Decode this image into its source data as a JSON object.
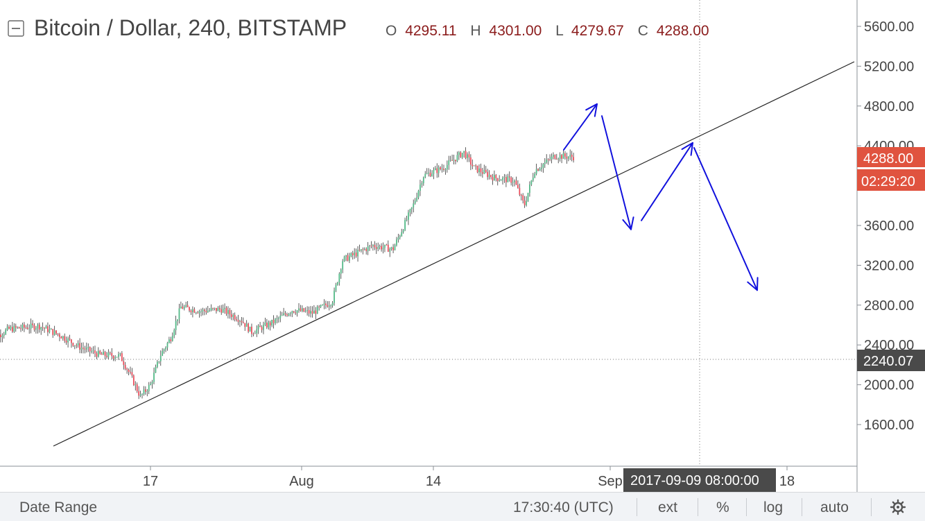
{
  "header": {
    "symbol_title": "Bitcoin / Dollar, 240, BITSTAMP",
    "ohlc": [
      {
        "key": "O",
        "value": "4295.11"
      },
      {
        "key": "H",
        "value": "4301.00"
      },
      {
        "key": "L",
        "value": "4279.67"
      },
      {
        "key": "C",
        "value": "4288.00"
      }
    ]
  },
  "price_axis": {
    "ticks": [
      "5600.00",
      "5200.00",
      "4800.00",
      "4400.00",
      "3600.00",
      "3200.00",
      "2800.00",
      "2400.00",
      "2000.00",
      "1600.00"
    ],
    "last_price_label": "4288.00",
    "countdown_label": "02:29:20",
    "crosshair_price_label": "2240.07"
  },
  "time_axis": {
    "ticks": [
      "17",
      "Aug",
      "14",
      "Sep",
      "18"
    ],
    "crosshair_time_label": "2017-09-09 08:00:00"
  },
  "bottom_bar": {
    "date_range": "Date Range",
    "clock": "17:30:40 (UTC)",
    "ext": "ext",
    "percent": "%",
    "log": "log",
    "auto": "auto",
    "settings_icon": "gear-icon"
  },
  "colors": {
    "up": "#53b987",
    "down": "#eb4d5c",
    "last_price_bg": "#e0533f",
    "crosshair_label_bg": "#4a4a4a",
    "drawing_arrows": "#1111dd",
    "trendline": "#222222"
  },
  "chart_data": {
    "type": "candlestick",
    "title": "Bitcoin / Dollar, 240, BITSTAMP",
    "timeframe": "240",
    "y_range": [
      1300,
      5800
    ],
    "ohlc_last": {
      "open": 4295.11,
      "high": 4301.0,
      "low": 4279.67,
      "close": 4288.0
    },
    "crosshair": {
      "price": 2240.07,
      "time": "2017-09-09 08:00:00"
    },
    "price_path": [
      [
        "2017-07-01",
        2440
      ],
      [
        "2017-07-03",
        2560
      ],
      [
        "2017-07-06",
        2590
      ],
      [
        "2017-07-08",
        2500
      ],
      [
        "2017-07-10",
        2380
      ],
      [
        "2017-07-12",
        2300
      ],
      [
        "2017-07-14",
        2290
      ],
      [
        "2017-07-15",
        2100
      ],
      [
        "2017-07-16",
        1880
      ],
      [
        "2017-07-17",
        2000
      ],
      [
        "2017-07-18",
        2300
      ],
      [
        "2017-07-19",
        2470
      ],
      [
        "2017-07-20",
        2780
      ],
      [
        "2017-07-22",
        2740
      ],
      [
        "2017-07-24",
        2760
      ],
      [
        "2017-07-26",
        2650
      ],
      [
        "2017-07-27",
        2530
      ],
      [
        "2017-07-29",
        2620
      ],
      [
        "2017-07-31",
        2750
      ],
      [
        "2017-08-01",
        2740
      ],
      [
        "2017-08-02",
        2720
      ],
      [
        "2017-08-04",
        2840
      ],
      [
        "2017-08-05",
        3250
      ],
      [
        "2017-08-08",
        3400
      ],
      [
        "2017-08-10",
        3360
      ],
      [
        "2017-08-12",
        3800
      ],
      [
        "2017-08-13",
        4100
      ],
      [
        "2017-08-15",
        4180
      ],
      [
        "2017-08-17",
        4340
      ],
      [
        "2017-08-18",
        4180
      ],
      [
        "2017-08-20",
        4080
      ],
      [
        "2017-08-22",
        4050
      ],
      [
        "2017-08-23",
        3800
      ],
      [
        "2017-08-24",
        4150
      ],
      [
        "2017-08-26",
        4300
      ],
      [
        "2017-08-28",
        4288
      ]
    ],
    "trendline": [
      [
        "2017-07-05",
        1410
      ],
      [
        "2017-09-21",
        5220
      ]
    ],
    "projection_path": [
      4360,
      4820,
      3560,
      4430,
      2950
    ]
  }
}
